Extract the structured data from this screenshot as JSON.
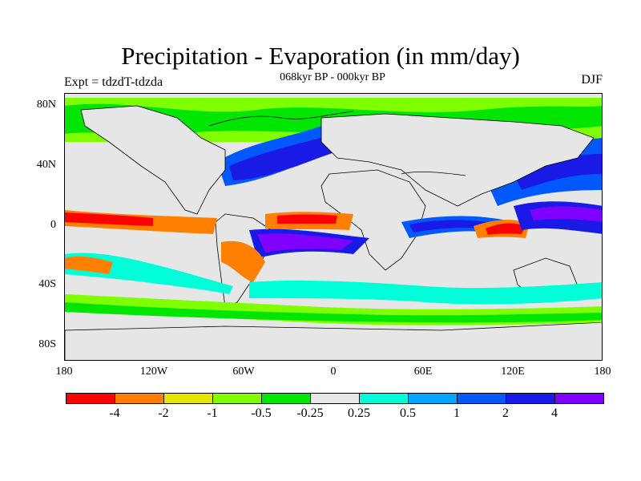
{
  "title": "Precipitation - Evaporation (in mm/day)",
  "subtitle": "068kyr BP - 000kyr BP",
  "experiment": "Expt = tdzdT-tdzda",
  "season": "DJF",
  "y_axis_labels": [
    "80N",
    "40N",
    "0",
    "40S",
    "80S"
  ],
  "x_axis_labels": [
    "180",
    "120W",
    "60W",
    "0",
    "60E",
    "120E",
    "180"
  ],
  "legend": {
    "colors": [
      "#ff0000",
      "#ff8000",
      "#e6e600",
      "#80ff00",
      "#00e600",
      "#e6e6e6",
      "#00ffd9",
      "#00a6ff",
      "#0059ff",
      "#1a1ae6",
      "#8000ff"
    ],
    "labels": [
      "-4",
      "-2",
      "-1",
      "-0.5",
      "-0.25",
      "0.25",
      "0.5",
      "1",
      "2",
      "4"
    ]
  },
  "map_colors": {
    "ocean_default": "#e6e6e6",
    "coastline": "#000000"
  }
}
